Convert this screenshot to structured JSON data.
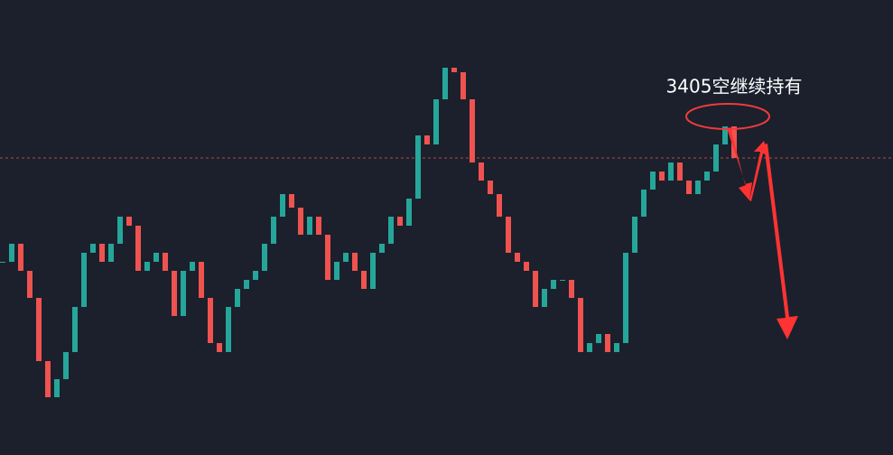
{
  "chart_data": {
    "type": "candlestick",
    "annotation": "3405空继续持有",
    "values": [
      214,
      234,
      204,
      174,
      104,
      64,
      84,
      114,
      164,
      224,
      234,
      214,
      234,
      264,
      254,
      204,
      214,
      224,
      204,
      154,
      204,
      214,
      174,
      124,
      114,
      164,
      184,
      194,
      204,
      234,
      264,
      289,
      274,
      244,
      264,
      244,
      194,
      214,
      224,
      204,
      184,
      224,
      234,
      264,
      254,
      284,
      354,
      344,
      394,
      429,
      424,
      394,
      324,
      304,
      289,
      264,
      224,
      214,
      204,
      164,
      184,
      194,
      194,
      174,
      114,
      124,
      134,
      114,
      124,
      224,
      264,
      294,
      314,
      304,
      324,
      304,
      289,
      304,
      314,
      344,
      364,
      329
    ],
    "ylim": [
      0,
      504
    ],
    "reference_line": 329,
    "up_color": "#26a69a",
    "down_color": "#ef5350"
  }
}
